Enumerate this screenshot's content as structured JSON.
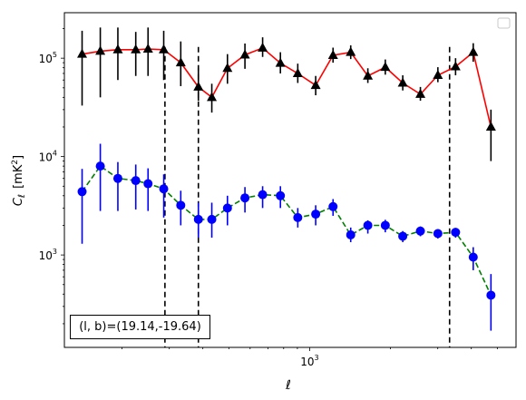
{
  "chart_data": {
    "type": "scatter",
    "title": "",
    "xlabel": "ℓ",
    "ylabel": "C",
    "ylabel_sub": "ℓ",
    "ylabel_unit": "[mK",
    "ylabel_unit_sup": "2",
    "ylabel_unit_end": "]",
    "xscale": "log",
    "yscale": "log",
    "xlim": [
      122,
      5870
    ],
    "ylim": [
      115,
      290000
    ],
    "xticks": [
      {
        "value": 1000,
        "base": "10",
        "exp": "3"
      }
    ],
    "yticks": [
      {
        "value": 1000,
        "base": "10",
        "exp": "3"
      },
      {
        "value": 10000,
        "base": "10",
        "exp": "4"
      },
      {
        "value": 100000,
        "base": "10",
        "exp": "5"
      }
    ],
    "grid": false,
    "legend": "top-right (empty)",
    "vlines": [
      289,
      385,
      3320
    ],
    "annotation": "(l, b)=(19.14,-19.64)",
    "series": [
      {
        "marker": "triangle",
        "color": "#000000",
        "line_color": "#ff0000",
        "line_style": "solid",
        "x": [
          142,
          166,
          193,
          225,
          250,
          286,
          331,
          385,
          432,
          494,
          574,
          668,
          778,
          903,
          1053,
          1222,
          1422,
          1647,
          1913,
          2222,
          2585,
          3003,
          3495,
          4067,
          4734
        ],
        "y": [
          110000,
          118000,
          122000,
          122000,
          124000,
          122000,
          90000,
          51000,
          40000,
          79000,
          108000,
          127000,
          89000,
          70000,
          53000,
          107000,
          115000,
          66000,
          81000,
          56000,
          43000,
          67000,
          82000,
          115000,
          20000
        ],
        "err_low": [
          33000,
          40000,
          60000,
          66000,
          66000,
          60000,
          52000,
          37000,
          28000,
          55000,
          78000,
          103000,
          70000,
          56000,
          42000,
          90000,
          98000,
          56000,
          68000,
          47000,
          37000,
          57000,
          67000,
          92000,
          9000
        ],
        "err_high": [
          190000,
          205000,
          205000,
          185000,
          205000,
          190000,
          148000,
          80000,
          55000,
          110000,
          141000,
          163000,
          115000,
          88000,
          66000,
          128000,
          135000,
          79000,
          97000,
          67000,
          51000,
          81000,
          100000,
          142000,
          30000
        ]
      },
      {
        "marker": "circle",
        "color": "#0000ff",
        "line_color": "#008000",
        "line_style": "dashed",
        "x": [
          142,
          166,
          193,
          225,
          250,
          286,
          331,
          385,
          432,
          494,
          574,
          668,
          778,
          903,
          1053,
          1222,
          1422,
          1647,
          1913,
          2222,
          2585,
          3003,
          3495,
          4067,
          4734
        ],
        "y": [
          4400,
          8000,
          6000,
          5700,
          5300,
          4700,
          3200,
          2300,
          2300,
          3000,
          3800,
          4100,
          4000,
          2400,
          2600,
          3100,
          1600,
          2000,
          2000,
          1550,
          1750,
          1650,
          1700,
          950,
          390
        ],
        "err_low": [
          1300,
          2800,
          2800,
          2900,
          2800,
          2400,
          2000,
          1500,
          1500,
          2000,
          2700,
          3000,
          3000,
          1900,
          2000,
          2500,
          1350,
          1650,
          1700,
          1350,
          1550,
          1470,
          1500,
          700,
          170
        ],
        "err_high": [
          7500,
          13500,
          8800,
          8300,
          7600,
          6600,
          4500,
          3400,
          3400,
          4000,
          4900,
          5000,
          5000,
          3000,
          3200,
          3700,
          1900,
          2250,
          2280,
          1750,
          1950,
          1830,
          1880,
          1200,
          640
        ]
      }
    ]
  }
}
